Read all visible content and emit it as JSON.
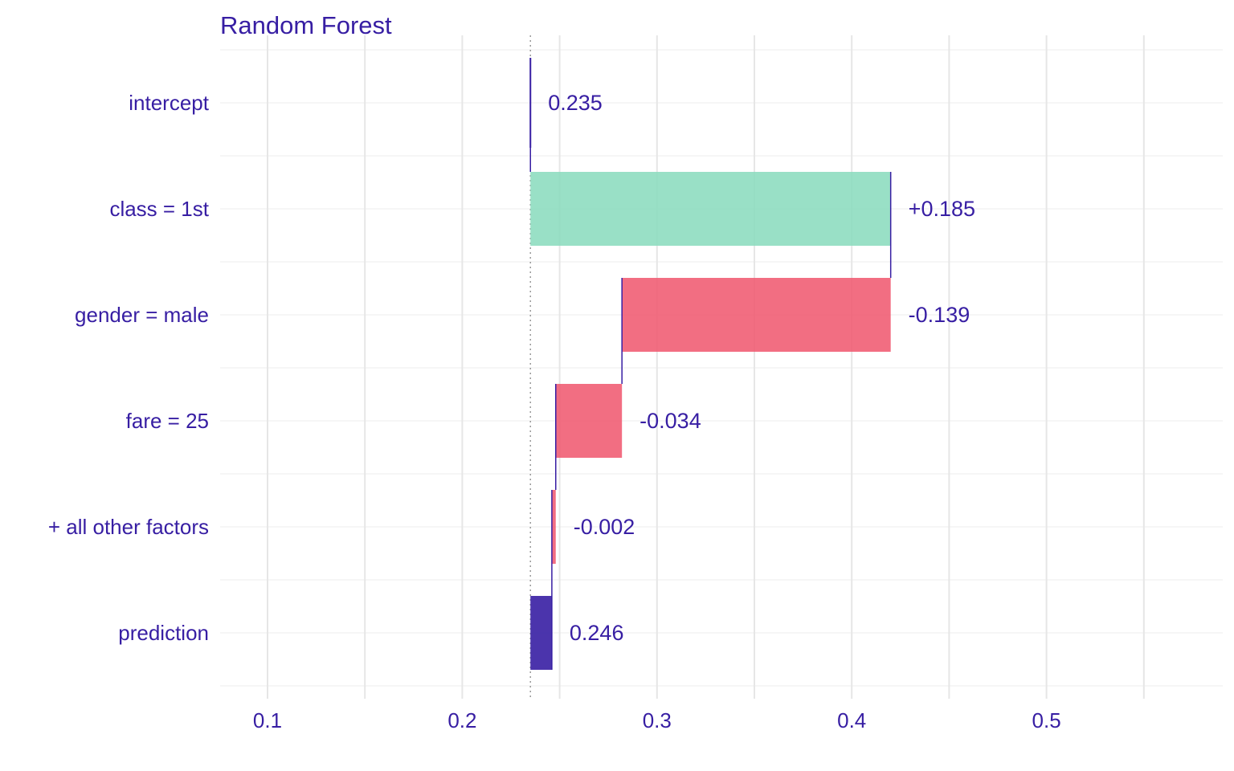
{
  "chart_data": {
    "type": "bar",
    "subtype": "waterfall-break-down",
    "title": "Random Forest",
    "xlabel": "",
    "ylabel": "",
    "xlim": [
      0.075,
      0.56
    ],
    "xticks": [
      0.1,
      0.2,
      0.3,
      0.4,
      0.5
    ],
    "xtick_labels": [
      "0.1",
      "0.2",
      "0.3",
      "0.4",
      "0.5"
    ],
    "baseline": 0.235,
    "grid": true,
    "legend": "none",
    "categories": [
      "intercept",
      "class = 1st",
      "gender = male",
      "fare = 25",
      "+ all other factors",
      "prediction"
    ],
    "bars": [
      {
        "variable": "intercept",
        "start": 0.235,
        "end": 0.235,
        "contribution": 0.235,
        "label": "0.235",
        "kind": "intercept"
      },
      {
        "variable": "class = 1st",
        "start": 0.235,
        "end": 0.42,
        "contribution": 0.185,
        "label": "+0.185",
        "kind": "positive"
      },
      {
        "variable": "gender = male",
        "start": 0.42,
        "end": 0.282,
        "contribution": -0.139,
        "label": "-0.139",
        "kind": "negative"
      },
      {
        "variable": "fare = 25",
        "start": 0.282,
        "end": 0.248,
        "contribution": -0.034,
        "label": "-0.034",
        "kind": "negative"
      },
      {
        "variable": "+ all other factors",
        "start": 0.248,
        "end": 0.246,
        "contribution": -0.002,
        "label": "-0.002",
        "kind": "negative"
      },
      {
        "variable": "prediction",
        "start": 0.235,
        "end": 0.246,
        "contribution": 0.246,
        "label": "0.246",
        "kind": "prediction"
      }
    ],
    "colors": {
      "positive": "#8bdcbe",
      "negative": "#f05a71",
      "prediction": "#371ea3",
      "text": "#371ea3",
      "grid": "#e6e6e6",
      "baseline": "#9a9a9a"
    }
  }
}
